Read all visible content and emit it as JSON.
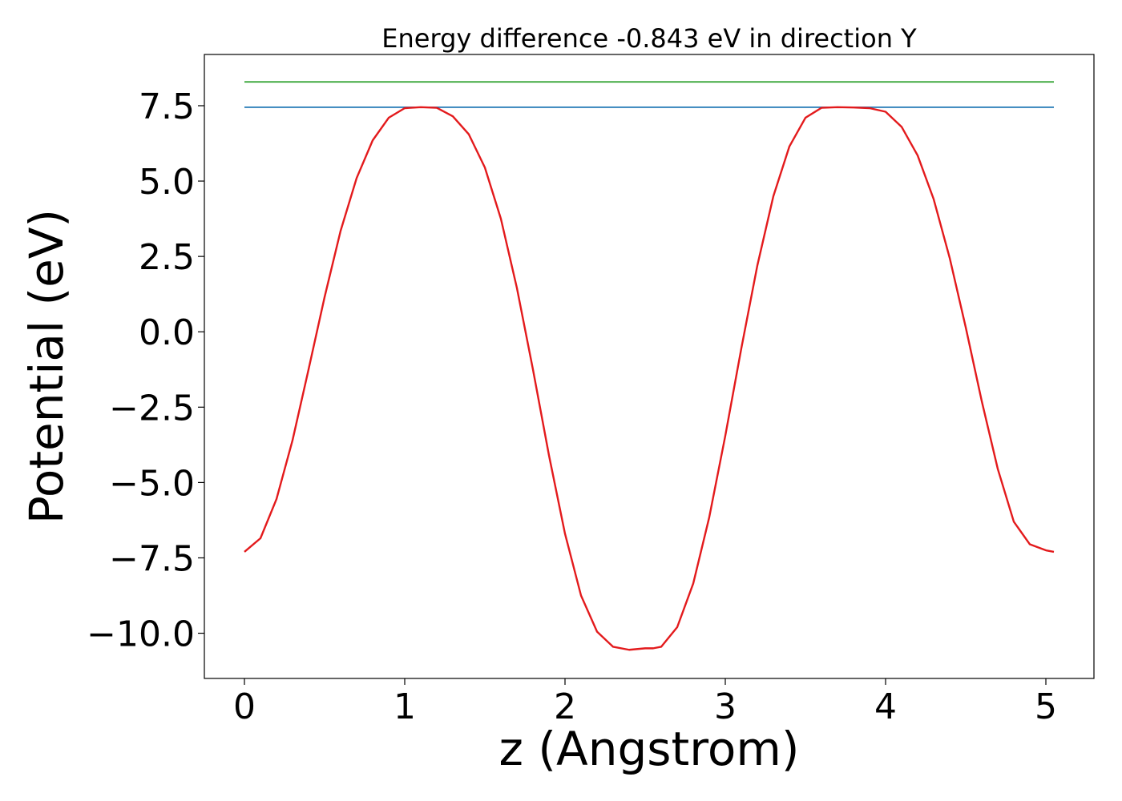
{
  "chart_data": {
    "type": "line",
    "title": "Energy difference -0.843 eV in direction Y",
    "xlabel": "z (Angstrom)",
    "ylabel": "Potential (eV)",
    "xlim": [
      -0.25,
      5.3
    ],
    "ylim": [
      -11.5,
      9.2
    ],
    "xticks": [
      0,
      1,
      2,
      3,
      4,
      5
    ],
    "xtick_labels": [
      "0",
      "1",
      "2",
      "3",
      "4",
      "5"
    ],
    "yticks": [
      7.5,
      5.0,
      2.5,
      0.0,
      -2.5,
      -5.0,
      -7.5,
      -10.0
    ],
    "ytick_labels": [
      "7.5",
      "5.0",
      "2.5",
      "0.0",
      "−2.5",
      "−5.0",
      "−7.5",
      "−10.0"
    ],
    "grid": false,
    "legend": "none",
    "series": [
      {
        "color": "#2ca02c",
        "x": [
          0,
          5.05
        ],
        "y": [
          8.29,
          8.29
        ]
      },
      {
        "color": "#1f77b4",
        "x": [
          0,
          5.05
        ],
        "y": [
          7.45,
          7.45
        ]
      },
      {
        "color": "#e31a1c",
        "x": [
          0.0,
          0.1,
          0.2,
          0.3,
          0.4,
          0.5,
          0.6,
          0.7,
          0.8,
          0.9,
          1.0,
          1.1,
          1.2,
          1.3,
          1.4,
          1.5,
          1.6,
          1.7,
          1.8,
          1.9,
          2.0,
          2.1,
          2.2,
          2.3,
          2.4,
          2.5,
          2.55,
          2.6,
          2.7,
          2.8,
          2.9,
          3.0,
          3.1,
          3.2,
          3.3,
          3.4,
          3.5,
          3.6,
          3.7,
          3.8,
          3.9,
          4.0,
          4.1,
          4.2,
          4.3,
          4.4,
          4.5,
          4.6,
          4.7,
          4.8,
          4.9,
          5.0,
          5.05
        ],
        "y": [
          -7.3,
          -6.85,
          -5.55,
          -3.6,
          -1.25,
          1.15,
          3.35,
          5.1,
          6.35,
          7.1,
          7.42,
          7.45,
          7.43,
          7.15,
          6.55,
          5.45,
          3.75,
          1.45,
          -1.25,
          -4.1,
          -6.7,
          -8.75,
          -9.95,
          -10.45,
          -10.55,
          -10.5,
          -10.5,
          -10.45,
          -9.8,
          -8.35,
          -6.15,
          -3.45,
          -0.55,
          2.2,
          4.5,
          6.15,
          7.1,
          7.43,
          7.45,
          7.44,
          7.42,
          7.3,
          6.8,
          5.85,
          4.4,
          2.45,
          0.15,
          -2.3,
          -4.55,
          -6.3,
          -7.05,
          -7.25,
          -7.3
        ]
      }
    ]
  }
}
